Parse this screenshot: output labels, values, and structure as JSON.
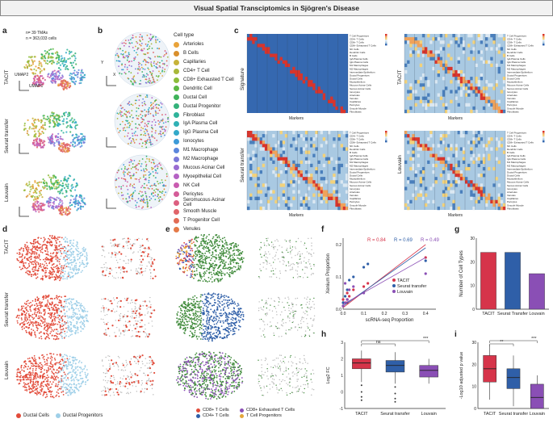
{
  "title": "Visual Spatial Transciptomics in Sjögren's Disease",
  "panel_labels": [
    "a",
    "b",
    "c",
    "d",
    "e",
    "f",
    "g",
    "h",
    "i"
  ],
  "panel_a": {
    "stats_line1": "n= 39 TMAs",
    "stats_line2": "n = 363,033 cells",
    "rows": [
      "TACIT",
      "Seurat transfer",
      "Louvain"
    ],
    "axis_x": "UMAP1",
    "axis_y": "UMAP2"
  },
  "panel_b": {
    "axis_x": "X",
    "axis_y": "Y",
    "legend_title": "Cell type",
    "cell_types": [
      {
        "name": "Arterioles",
        "color": "#e9a33a"
      },
      {
        "name": "B Cells",
        "color": "#d98f2c"
      },
      {
        "name": "Capillaries",
        "color": "#c7b33a"
      },
      {
        "name": "CD4+ T Cell",
        "color": "#a8b83a"
      },
      {
        "name": "CD8+ Exhausted T Cell",
        "color": "#8cbd3a"
      },
      {
        "name": "Dendritic Cell",
        "color": "#5cb843"
      },
      {
        "name": "Ductal Cell",
        "color": "#3fb35a"
      },
      {
        "name": "Ductal Progenitor",
        "color": "#34b27a"
      },
      {
        "name": "Fibroblast",
        "color": "#2fb39a"
      },
      {
        "name": "IgA Plasma Cell",
        "color": "#30b1b5"
      },
      {
        "name": "IgG Plasma Cell",
        "color": "#33a9c9"
      },
      {
        "name": "Ionocytes",
        "color": "#3c9ad8"
      },
      {
        "name": "M1 Macrophage",
        "color": "#5b86dc"
      },
      {
        "name": "M2 Macrophage",
        "color": "#7b78d8"
      },
      {
        "name": "Mucous Acinar Cell",
        "color": "#9a6cd2"
      },
      {
        "name": "Myoepithelial Cell",
        "color": "#b562c4"
      },
      {
        "name": "NK Cell",
        "color": "#c95cb0"
      },
      {
        "name": "Pericytes",
        "color": "#d45c98"
      },
      {
        "name": "Seromucous Acinar Cell",
        "color": "#dc5f80"
      },
      {
        "name": "Smooth Muscle",
        "color": "#e0646a"
      },
      {
        "name": "T Progenitor Cell",
        "color": "#e26c55"
      },
      {
        "name": "Venules",
        "color": "#e47a48"
      }
    ]
  },
  "panel_c": {
    "heatmaps": [
      {
        "label": "Signature",
        "xlabel": "Markers"
      },
      {
        "label": "TACIT",
        "xlabel": "Markers"
      },
      {
        "label": "Seurat transfer",
        "xlabel": "Markers"
      },
      {
        "label": "Louvain",
        "xlabel": "Markers"
      }
    ],
    "row_labels": [
      "T Cell Progenitors",
      "CD4+ T Cells",
      "CD8+ T Cells",
      "CD8+ Exhausted T Cells",
      "NK Cells",
      "Dendritic Cells",
      "B Cells",
      "IgA Plasma Cells",
      "IgG Plasma Cells",
      "M1 Macrophages",
      "M2 Macrophages",
      "Intermediate Epithelium",
      "Ductal Progenitors",
      "Ductal Cells",
      "Myoepithelium",
      "Mucous Acinar Cells",
      "Serous Acinar Cells",
      "Ionocytes",
      "Arterioles",
      "Venules",
      "Capillaries",
      "Pericytes",
      "Smooth Muscle",
      "Fibroblasts"
    ]
  },
  "panel_d": {
    "rows": [
      "TACIT",
      "Seurat transfer",
      "Louvain"
    ],
    "legend": [
      {
        "name": "Ductal Cells",
        "color": "#e24b3a"
      },
      {
        "name": "Ductal Progenitors",
        "color": "#9ecfe8"
      }
    ],
    "axis_x": "UMAP1",
    "axis_y": "UMAP2"
  },
  "panel_e": {
    "legend": [
      {
        "name": "CD8+ T Cells",
        "color": "#e24b3a"
      },
      {
        "name": "CD8+ Exhausted T Cells",
        "color": "#8a4fb5"
      },
      {
        "name": "CD4+ T Cells",
        "color": "#2f5fa8"
      },
      {
        "name": "T Cell Progenitors",
        "color": "#e3a63a"
      }
    ]
  },
  "chart_data": [
    {
      "type": "scatter",
      "panel": "f",
      "xlabel": "scRNA-seq Proportion",
      "ylabel": "Xenium Proportion",
      "xlim": [
        0,
        0.45
      ],
      "ylim": [
        0,
        0.22
      ],
      "xticks": [
        "0.0",
        "0.1",
        "0.2",
        "0.3",
        "0.4"
      ],
      "yticks": [
        "0.0",
        "0.1",
        "0.2"
      ],
      "r_labels": [
        "R = 0.84",
        "R = 0.69",
        "R = 0.49"
      ],
      "series": [
        {
          "name": "TACIT",
          "color": "#d6344a",
          "r": 0.84,
          "points": [
            [
              0.0,
              0.01
            ],
            [
              0.01,
              0.02
            ],
            [
              0.02,
              0.03
            ],
            [
              0.02,
              0.05
            ],
            [
              0.03,
              0.04
            ],
            [
              0.05,
              0.06
            ],
            [
              0.1,
              0.07
            ],
            [
              0.12,
              0.08
            ],
            [
              0.02,
              0.02
            ],
            [
              0.0,
              0.03
            ],
            [
              0.4,
              0.16
            ]
          ],
          "fit": [
            [
              0,
              0.005
            ],
            [
              0.4,
              0.2
            ]
          ]
        },
        {
          "name": "Seurat transfer",
          "color": "#2f5fa8",
          "r": 0.69,
          "points": [
            [
              0.0,
              0.02
            ],
            [
              0.01,
              0.04
            ],
            [
              0.02,
              0.06
            ],
            [
              0.03,
              0.09
            ],
            [
              0.05,
              0.1
            ],
            [
              0.1,
              0.13
            ],
            [
              0.12,
              0.14
            ],
            [
              0.02,
              0.03
            ],
            [
              0.4,
              0.15
            ]
          ],
          "fit": [
            [
              0,
              0.01
            ],
            [
              0.4,
              0.19
            ]
          ]
        },
        {
          "name": "Louvain",
          "color": "#8a4fb5",
          "r": 0.49,
          "points": [
            [
              0.0,
              0.01
            ],
            [
              0.01,
              0.02
            ],
            [
              0.02,
              0.03
            ],
            [
              0.03,
              0.06
            ],
            [
              0.05,
              0.07
            ],
            [
              0.1,
              0.05
            ],
            [
              0.01,
              0.08
            ],
            [
              0.4,
              0.11
            ]
          ],
          "fit": [
            [
              0,
              0.015
            ],
            [
              0.4,
              0.16
            ]
          ]
        }
      ]
    },
    {
      "type": "bar",
      "panel": "g",
      "categories": [
        "TACIT",
        "Seurat Transfer",
        "Louvain"
      ],
      "values": [
        24,
        24,
        15
      ],
      "colors": [
        "#d6344a",
        "#2f5fa8",
        "#8a4fb5"
      ],
      "ylabel": "Number of Cell Types",
      "ylim": [
        0,
        30
      ],
      "yticks": [
        "0",
        "10",
        "20",
        "30"
      ]
    },
    {
      "type": "box",
      "panel": "h",
      "categories": [
        "TACIT",
        "Seurat transfer",
        "Louvain"
      ],
      "colors": [
        "#d6344a",
        "#2f5fa8",
        "#8a4fb5"
      ],
      "ylabel": "Log2 FC",
      "ylim": [
        -1,
        3
      ],
      "yticks": [
        "-1",
        "0",
        "1",
        "2",
        "3"
      ],
      "boxes": [
        {
          "min": 0.6,
          "q1": 1.4,
          "median": 1.75,
          "q3": 2.0,
          "max": 2.5,
          "outliers": [
            0.4,
            0.0,
            -0.3,
            -0.5
          ]
        },
        {
          "min": 0.5,
          "q1": 1.2,
          "median": 1.6,
          "q3": 1.9,
          "max": 2.4,
          "outliers": [
            0.3,
            -0.1,
            -0.4,
            -0.6
          ]
        },
        {
          "min": 0.5,
          "q1": 0.9,
          "median": 1.3,
          "q3": 1.6,
          "max": 2.0,
          "outliers": []
        }
      ],
      "annotations": [
        "ns",
        "***"
      ]
    },
    {
      "type": "box",
      "panel": "i",
      "categories": [
        "TACIT",
        "Seurat transfer",
        "Louvain"
      ],
      "colors": [
        "#d6344a",
        "#2f5fa8",
        "#8a4fb5"
      ],
      "ylabel": "-Log10 adjusted p value",
      "ylim": [
        0,
        30
      ],
      "yticks": [
        "0",
        "10",
        "20",
        "30"
      ],
      "boxes": [
        {
          "min": 4,
          "q1": 12,
          "median": 18,
          "q3": 24,
          "max": 29,
          "outliers": []
        },
        {
          "min": 1,
          "q1": 9,
          "median": 14,
          "q3": 18,
          "max": 24,
          "outliers": []
        },
        {
          "min": 0,
          "q1": 0,
          "median": 5,
          "q3": 11,
          "max": 15,
          "outliers": []
        }
      ],
      "annotations": [
        "**",
        "***"
      ]
    }
  ]
}
